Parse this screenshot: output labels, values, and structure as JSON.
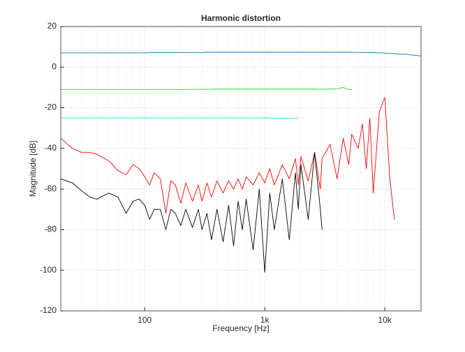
{
  "chart_data": {
    "type": "line",
    "title": "Harmonic distortion",
    "xlabel": "Frequency [Hz]",
    "ylabel": "Magnitude [dB]",
    "x_scale": "log",
    "grid": true,
    "x_minor_grid": true,
    "xlim": [
      20,
      20000
    ],
    "xticks": [
      100,
      {
        "value": 1000,
        "label": "1k"
      },
      {
        "value": 10000,
        "label": "10k"
      }
    ],
    "ylim": [
      -120,
      20
    ],
    "yticks": [
      -120,
      -100,
      -80,
      -60,
      -40,
      -20,
      0,
      20
    ],
    "x": [
      20,
      25,
      30,
      35,
      40,
      50,
      60,
      70,
      80,
      90,
      100,
      110,
      120,
      135,
      150,
      165,
      180,
      200,
      220,
      250,
      280,
      300,
      330,
      360,
      400,
      450,
      500,
      550,
      600,
      650,
      700,
      800,
      900,
      1000,
      1100,
      1200,
      1400,
      1600,
      1800,
      1900,
      2000,
      2300,
      2600,
      2900,
      3000,
      3500,
      4000,
      4500,
      5000,
      5300,
      6000,
      6500,
      7000,
      7500,
      8000,
      9000,
      9500,
      10000,
      11000,
      12000,
      15000,
      20000
    ],
    "series": [
      {
        "color": "#0072bd",
        "values": [
          7,
          7,
          7,
          7,
          7,
          7,
          7,
          7,
          7,
          7,
          7,
          7.1,
          7.1,
          7.1,
          7.1,
          7.1,
          7.2,
          7.2,
          7.2,
          7.2,
          7.2,
          7.2,
          7.3,
          7.3,
          7.3,
          7.3,
          7.3,
          7.3,
          7.3,
          7.3,
          7.3,
          7.3,
          7.3,
          7.3,
          7.3,
          7.3,
          7.3,
          7.3,
          7.3,
          7.3,
          7.3,
          7.3,
          7.3,
          7.3,
          7.3,
          7.3,
          7.3,
          7.3,
          7.3,
          7.3,
          7.2,
          7.2,
          7.2,
          7.1,
          7.1,
          7,
          7,
          6.9,
          6.8,
          6.6,
          6.3,
          5.5
        ]
      },
      {
        "color": "#22dd22",
        "values": [
          -11,
          -11,
          -11,
          -11,
          -11,
          -11,
          -11,
          -11,
          -11,
          -11,
          -11,
          -11,
          -11,
          -11,
          -11,
          -11,
          -11,
          -11,
          -11,
          -10.9,
          -10.9,
          -10.9,
          -10.9,
          -10.9,
          -10.8,
          -10.8,
          -10.8,
          -10.8,
          -10.8,
          -10.8,
          -10.8,
          -10.8,
          -10.8,
          -10.8,
          -10.8,
          -10.8,
          -10.8,
          -10.8,
          -10.8,
          -10.8,
          -10.8,
          -10.8,
          -10.8,
          -10.9,
          -10.9,
          -10.8,
          -10.7,
          -10,
          -11,
          -11.2,
          null,
          null,
          null,
          null,
          null,
          null,
          null,
          null,
          null,
          null,
          null,
          null
        ]
      },
      {
        "color": "#00e0e0",
        "values": [
          -25,
          -25,
          -25,
          -25,
          -25,
          -25,
          -25,
          -25,
          -25,
          -25,
          -25,
          -25,
          -25,
          -25,
          -25,
          -25,
          -25,
          -25,
          -25,
          -25,
          -25,
          -25,
          -25,
          -25,
          -25,
          -25,
          -25,
          -25,
          -25,
          -25,
          -25,
          -25,
          -25,
          -25,
          -25.1,
          -25.1,
          -25.2,
          -25.3,
          -25.2,
          -25,
          null,
          null,
          null,
          null,
          null,
          null,
          null,
          null,
          null,
          null,
          null,
          null,
          null,
          null,
          null,
          null,
          null,
          null,
          null,
          null,
          null,
          null
        ]
      },
      {
        "color": "#ff0000",
        "values": [
          -35,
          -40,
          -42,
          -42,
          -43,
          -46,
          -51,
          -53,
          -48,
          -50,
          -54,
          -58,
          -52,
          -55,
          -72,
          -56,
          -58,
          -67,
          -57,
          -66,
          -58,
          -66,
          -57,
          -64,
          -56,
          -62,
          -56,
          -60,
          -55,
          -60,
          -54,
          -58,
          -52,
          -57,
          -50,
          -58,
          -48,
          -55,
          -45,
          -58,
          -44,
          -56,
          -42,
          -60,
          -45,
          -38,
          -55,
          -35,
          -48,
          -33,
          -40,
          -28,
          -50,
          -25,
          -62,
          -22,
          -18,
          -15,
          -55,
          -75,
          null,
          null
        ]
      },
      {
        "color": "#000000",
        "values": [
          -55,
          -57,
          -61,
          -64,
          -65,
          -62,
          -64,
          -72,
          -66,
          -65,
          -68,
          -75,
          -70,
          -70,
          -80,
          -70,
          -72,
          -78,
          -70,
          -79,
          -70,
          -80,
          -72,
          -85,
          -70,
          -86,
          -68,
          -88,
          -66,
          -80,
          -65,
          -90,
          -60,
          -101,
          -62,
          -80,
          -55,
          -85,
          -52,
          -70,
          -48,
          -75,
          -42,
          -70,
          -80,
          null,
          null,
          null,
          null,
          null,
          null,
          null,
          null,
          null,
          null,
          null,
          null,
          null,
          null,
          null,
          null,
          null
        ]
      }
    ]
  }
}
